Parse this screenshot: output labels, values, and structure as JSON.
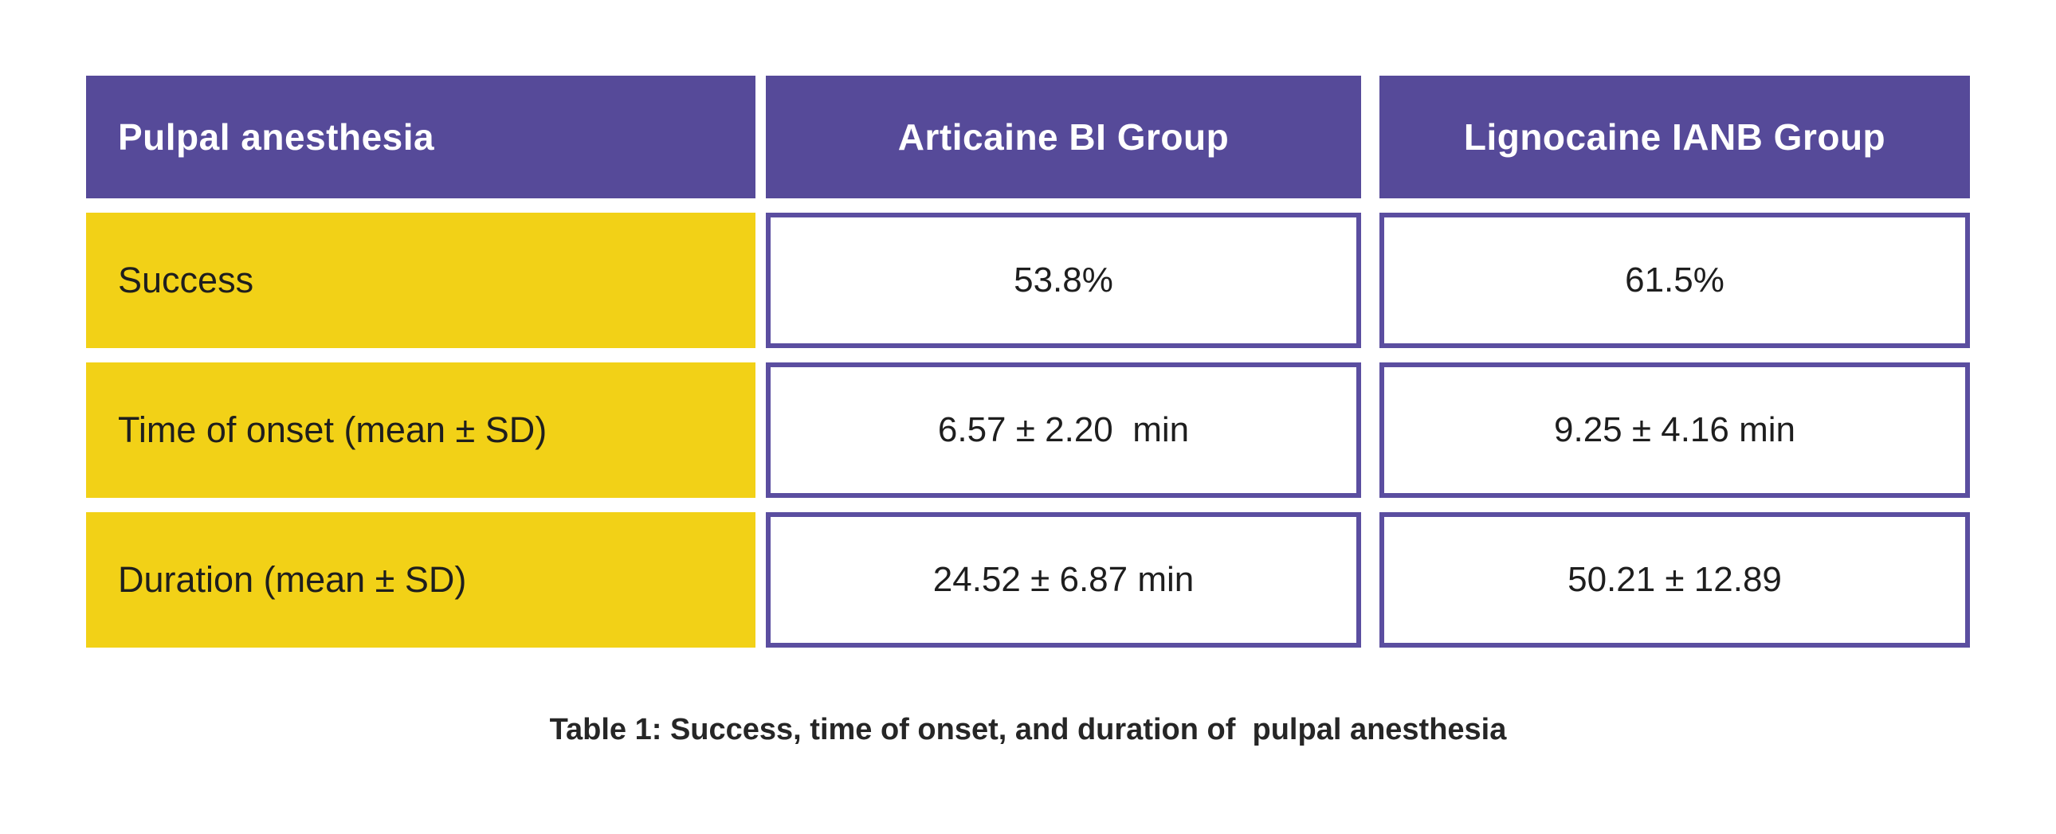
{
  "figure": {
    "caption": "Table 1: Success, time of onset, and duration of  pulpal anesthesia"
  },
  "table": {
    "header": [
      "Pulpal anesthesia",
      "Articaine BI Group",
      "Lignocaine IANB Group"
    ],
    "rows": [
      {
        "label": "Success",
        "values": [
          "53.8%",
          "61.5%"
        ]
      },
      {
        "label": "Time of onset (mean ± SD)",
        "values": [
          "6.57 ± 2.20  min",
          "9.25 ± 4.16 min"
        ]
      },
      {
        "label": "Duration (mean ± SD)",
        "values": [
          "24.52 ± 6.87 min",
          "50.21 ± 12.89"
        ]
      }
    ]
  },
  "chart_data": {
    "type": "table",
    "title": "Table 1: Success, time of onset, and duration of pulpal anesthesia",
    "columns": [
      "Pulpal anesthesia",
      "Articaine BI Group",
      "Lignocaine IANB Group"
    ],
    "rows": [
      [
        "Success",
        "53.8%",
        "61.5%"
      ],
      [
        "Time of onset (mean ± SD)",
        "6.57 ± 2.20 min",
        "9.25 ± 4.16 min"
      ],
      [
        "Duration (mean ± SD)",
        "24.52 ± 6.87 min",
        "50.21 ± 12.89"
      ]
    ],
    "numeric": {
      "success_rate_percent": {
        "articaine_bi": 53.8,
        "lignocaine_ianb": 61.5
      },
      "onset_min": {
        "articaine_bi_mean": 6.57,
        "articaine_bi_sd": 2.2,
        "lignocaine_ianb_mean": 9.25,
        "lignocaine_ianb_sd": 4.16
      },
      "duration_min": {
        "articaine_bi_mean": 24.52,
        "articaine_bi_sd": 6.87,
        "lignocaine_ianb_mean": 50.21,
        "lignocaine_ianb_sd": 12.89
      }
    },
    "legend_position": "none",
    "grid": false
  },
  "colors": {
    "header_fill": "#564a99",
    "header_text": "#ffffff",
    "label_fill": "#f2d117",
    "cell_border": "#5b4ea0",
    "body_text": "#1e1e1e",
    "caption_text": "#262626",
    "background": "#ffffff"
  }
}
